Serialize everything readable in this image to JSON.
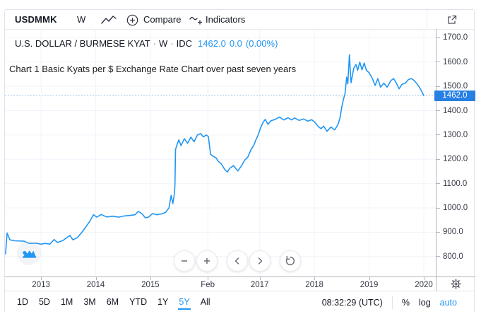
{
  "toolbar": {
    "symbol": "USDMMK",
    "interval": "W",
    "compare_label": "Compare",
    "indicators_label": "Indicators"
  },
  "header": {
    "title": "U.S. DOLLAR / BURMESE KYAT",
    "separator": "·",
    "interval": "W",
    "exchange": "IDC",
    "price": "1462.0",
    "change": "0.0",
    "change_pct": "(0.00%)"
  },
  "annotation": {
    "text": "Chart 1 Basic Kyats per $ Exchange Rate Chart over past seven years"
  },
  "icons": {
    "chart_type": "line-chart-icon",
    "compare": "circle-plus-icon",
    "indicators": "squiggle-plus-icon",
    "open_external": "external-link-icon",
    "settings": "gear-icon",
    "logo": "tradingview-mountains-logo",
    "zoom_out": "minus-icon",
    "zoom_in": "plus-icon",
    "scroll_left": "chevron-left-icon",
    "scroll_right": "chevron-right-icon",
    "reset": "reset-arrow-icon"
  },
  "chart_data": {
    "type": "line",
    "title": "U.S. DOLLAR / BURMESE KYAT · W · IDC",
    "legend": "none",
    "grid": "on",
    "line_color": "#2196f3",
    "price_line_color": "#8fb9e8",
    "grid_color": "#f0f3fa",
    "xlim": [
      2012.34,
      2020.22
    ],
    "ylim": [
      718,
      1736
    ],
    "last_price": 1462.0,
    "last_price_label": "1462.0",
    "x_ticks": [
      {
        "year": 2013.0,
        "label": "2013"
      },
      {
        "year": 2014.0,
        "label": "2014"
      },
      {
        "year": 2015.0,
        "label": "2015"
      },
      {
        "year": 2016.05,
        "label": "Feb"
      },
      {
        "year": 2017.0,
        "label": "2017"
      },
      {
        "year": 2018.0,
        "label": "2018"
      },
      {
        "year": 2019.0,
        "label": "2019"
      },
      {
        "year": 2020.0,
        "label": "2020"
      }
    ],
    "y_ticks": [
      {
        "value": 800,
        "label": "800.0"
      },
      {
        "value": 900,
        "label": "900.0"
      },
      {
        "value": 1000,
        "label": "1000.0"
      },
      {
        "value": 1100,
        "label": "1100.0"
      },
      {
        "value": 1200,
        "label": "1200.0"
      },
      {
        "value": 1300,
        "label": "1300.0"
      },
      {
        "value": 1400,
        "label": "1400.0"
      },
      {
        "value": 1500,
        "label": "1500.0"
      },
      {
        "value": 1600,
        "label": "1600.0"
      },
      {
        "value": 1700,
        "label": "1700.0"
      }
    ],
    "series": [
      {
        "name": "USDMMK",
        "points": [
          [
            2012.35,
            811
          ],
          [
            2012.38,
            897
          ],
          [
            2012.43,
            869
          ],
          [
            2012.52,
            865
          ],
          [
            2012.69,
            863
          ],
          [
            2012.78,
            854
          ],
          [
            2012.91,
            855
          ],
          [
            2013.0,
            851
          ],
          [
            2013.08,
            854
          ],
          [
            2013.16,
            851
          ],
          [
            2013.24,
            870
          ],
          [
            2013.3,
            858
          ],
          [
            2013.4,
            866
          ],
          [
            2013.47,
            878
          ],
          [
            2013.53,
            887
          ],
          [
            2013.58,
            869
          ],
          [
            2013.66,
            877
          ],
          [
            2013.74,
            898
          ],
          [
            2013.82,
            922
          ],
          [
            2013.89,
            945
          ],
          [
            2013.96,
            972
          ],
          [
            2014.02,
            962
          ],
          [
            2014.1,
            973
          ],
          [
            2014.2,
            963
          ],
          [
            2014.31,
            966
          ],
          [
            2014.42,
            962
          ],
          [
            2014.52,
            967
          ],
          [
            2014.62,
            969
          ],
          [
            2014.72,
            972
          ],
          [
            2014.78,
            986
          ],
          [
            2014.85,
            975
          ],
          [
            2014.91,
            959
          ],
          [
            2014.97,
            963
          ],
          [
            2015.04,
            977
          ],
          [
            2015.12,
            972
          ],
          [
            2015.2,
            975
          ],
          [
            2015.28,
            982
          ],
          [
            2015.34,
            1000
          ],
          [
            2015.38,
            1052
          ],
          [
            2015.41,
            1018
          ],
          [
            2015.44,
            1060
          ],
          [
            2015.45,
            1096
          ],
          [
            2015.46,
            1240
          ],
          [
            2015.49,
            1262
          ],
          [
            2015.52,
            1280
          ],
          [
            2015.56,
            1256
          ],
          [
            2015.62,
            1285
          ],
          [
            2015.68,
            1266
          ],
          [
            2015.74,
            1291
          ],
          [
            2015.8,
            1272
          ],
          [
            2015.86,
            1300
          ],
          [
            2015.92,
            1306
          ],
          [
            2015.97,
            1292
          ],
          [
            2016.02,
            1300
          ],
          [
            2016.06,
            1294
          ],
          [
            2016.1,
            1221
          ],
          [
            2016.15,
            1212
          ],
          [
            2016.2,
            1206
          ],
          [
            2016.24,
            1192
          ],
          [
            2016.29,
            1183
          ],
          [
            2016.33,
            1169
          ],
          [
            2016.37,
            1155
          ],
          [
            2016.41,
            1148
          ],
          [
            2016.45,
            1163
          ],
          [
            2016.52,
            1174
          ],
          [
            2016.6,
            1152
          ],
          [
            2016.67,
            1175
          ],
          [
            2016.73,
            1198
          ],
          [
            2016.78,
            1208
          ],
          [
            2016.84,
            1240
          ],
          [
            2016.89,
            1257
          ],
          [
            2016.93,
            1280
          ],
          [
            2016.97,
            1300
          ],
          [
            2017.01,
            1326
          ],
          [
            2017.06,
            1352
          ],
          [
            2017.1,
            1364
          ],
          [
            2017.15,
            1344
          ],
          [
            2017.2,
            1358
          ],
          [
            2017.28,
            1364
          ],
          [
            2017.36,
            1374
          ],
          [
            2017.44,
            1362
          ],
          [
            2017.52,
            1371
          ],
          [
            2017.58,
            1362
          ],
          [
            2017.64,
            1370
          ],
          [
            2017.72,
            1360
          ],
          [
            2017.8,
            1366
          ],
          [
            2017.88,
            1357
          ],
          [
            2017.95,
            1363
          ],
          [
            2018.01,
            1352
          ],
          [
            2018.07,
            1335
          ],
          [
            2018.12,
            1326
          ],
          [
            2018.17,
            1336
          ],
          [
            2018.23,
            1315
          ],
          [
            2018.3,
            1333
          ],
          [
            2018.37,
            1321
          ],
          [
            2018.43,
            1342
          ],
          [
            2018.47,
            1372
          ],
          [
            2018.5,
            1415
          ],
          [
            2018.53,
            1446
          ],
          [
            2018.56,
            1470
          ],
          [
            2018.59,
            1538
          ],
          [
            2018.61,
            1510
          ],
          [
            2018.64,
            1630
          ],
          [
            2018.67,
            1515
          ],
          [
            2018.72,
            1575
          ],
          [
            2018.76,
            1590
          ],
          [
            2018.79,
            1566
          ],
          [
            2018.83,
            1600
          ],
          [
            2018.87,
            1568
          ],
          [
            2018.91,
            1596
          ],
          [
            2018.95,
            1566
          ],
          [
            2019.0,
            1556
          ],
          [
            2019.06,
            1532
          ],
          [
            2019.11,
            1504
          ],
          [
            2019.16,
            1532
          ],
          [
            2019.21,
            1497
          ],
          [
            2019.27,
            1513
          ],
          [
            2019.33,
            1497
          ],
          [
            2019.4,
            1524
          ],
          [
            2019.45,
            1532
          ],
          [
            2019.5,
            1512
          ],
          [
            2019.55,
            1490
          ],
          [
            2019.6,
            1508
          ],
          [
            2019.66,
            1513
          ],
          [
            2019.72,
            1528
          ],
          [
            2019.77,
            1532
          ],
          [
            2019.82,
            1525
          ],
          [
            2019.87,
            1512
          ],
          [
            2019.92,
            1497
          ],
          [
            2019.96,
            1480
          ],
          [
            2020.0,
            1462
          ]
        ]
      }
    ]
  },
  "price_scale": {
    "badge_label": "1462.0",
    "badge_color": "#2780e3"
  },
  "bottom_bar": {
    "ranges": [
      {
        "label": "1D",
        "active": false
      },
      {
        "label": "5D",
        "active": false
      },
      {
        "label": "1M",
        "active": false
      },
      {
        "label": "3M",
        "active": false
      },
      {
        "label": "6M",
        "active": false
      },
      {
        "label": "YTD",
        "active": false
      },
      {
        "label": "1Y",
        "active": false
      },
      {
        "label": "5Y",
        "active": true
      },
      {
        "label": "All",
        "active": false
      }
    ],
    "clock": "08:32:29 (UTC)",
    "percent_label": "%",
    "log_label": "log",
    "auto_label": "auto"
  },
  "colors": {
    "accent_blue": "#2196f3",
    "text_dark": "#131722",
    "axis_text": "#363a45",
    "border": "#e0e3eb",
    "axis_line": "#b2b5be",
    "badge_bg": "#2780e3"
  }
}
